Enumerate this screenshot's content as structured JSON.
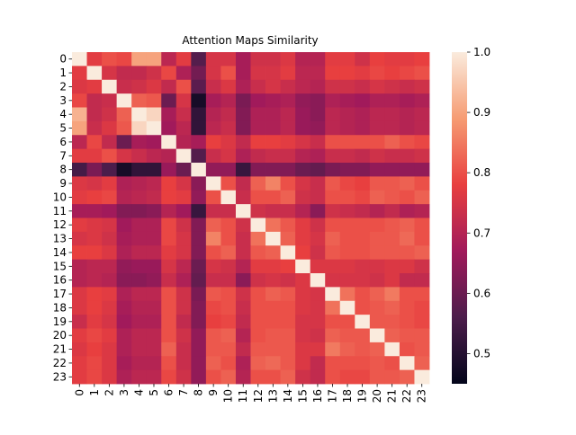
{
  "chart_data": {
    "type": "heatmap",
    "title": "Attention Maps Similarity",
    "xlabel": "",
    "ylabel": "",
    "row_labels": [
      "0",
      "1",
      "2",
      "3",
      "4",
      "5",
      "6",
      "7",
      "8",
      "9",
      "10",
      "11",
      "12",
      "13",
      "14",
      "15",
      "16",
      "17",
      "18",
      "19",
      "20",
      "21",
      "22",
      "23"
    ],
    "col_labels": [
      "0",
      "1",
      "2",
      "3",
      "4",
      "5",
      "6",
      "7",
      "8",
      "9",
      "10",
      "11",
      "12",
      "13",
      "14",
      "15",
      "16",
      "17",
      "18",
      "19",
      "20",
      "21",
      "22",
      "23"
    ],
    "values": [
      [
        1.0,
        0.77,
        0.8,
        0.79,
        0.9,
        0.9,
        0.71,
        0.77,
        0.57,
        0.75,
        0.75,
        0.68,
        0.74,
        0.74,
        0.76,
        0.7,
        0.7,
        0.77,
        0.77,
        0.74,
        0.78,
        0.77,
        0.77,
        0.78
      ],
      [
        0.77,
        1.0,
        0.75,
        0.72,
        0.72,
        0.74,
        0.79,
        0.69,
        0.61,
        0.75,
        0.8,
        0.68,
        0.75,
        0.75,
        0.77,
        0.71,
        0.71,
        0.78,
        0.78,
        0.77,
        0.79,
        0.78,
        0.79,
        0.8
      ],
      [
        0.76,
        0.77,
        1.0,
        0.73,
        0.74,
        0.76,
        0.72,
        0.8,
        0.58,
        0.73,
        0.76,
        0.69,
        0.73,
        0.75,
        0.73,
        0.71,
        0.7,
        0.74,
        0.74,
        0.73,
        0.75,
        0.74,
        0.73,
        0.74
      ],
      [
        0.79,
        0.72,
        0.73,
        1.0,
        0.82,
        0.81,
        0.6,
        0.75,
        0.48,
        0.68,
        0.7,
        0.62,
        0.67,
        0.68,
        0.69,
        0.65,
        0.64,
        0.69,
        0.68,
        0.67,
        0.69,
        0.69,
        0.68,
        0.69
      ],
      [
        0.92,
        0.72,
        0.74,
        0.82,
        1.0,
        0.97,
        0.68,
        0.73,
        0.52,
        0.7,
        0.72,
        0.63,
        0.69,
        0.69,
        0.71,
        0.66,
        0.64,
        0.71,
        0.7,
        0.69,
        0.71,
        0.71,
        0.7,
        0.71
      ],
      [
        0.9,
        0.73,
        0.76,
        0.81,
        0.97,
        1.0,
        0.67,
        0.71,
        0.52,
        0.71,
        0.73,
        0.63,
        0.69,
        0.69,
        0.71,
        0.66,
        0.65,
        0.71,
        0.7,
        0.69,
        0.71,
        0.71,
        0.7,
        0.71
      ],
      [
        0.71,
        0.79,
        0.72,
        0.6,
        0.68,
        0.67,
        1.0,
        0.7,
        0.68,
        0.78,
        0.76,
        0.72,
        0.78,
        0.78,
        0.77,
        0.75,
        0.73,
        0.8,
        0.8,
        0.8,
        0.8,
        0.82,
        0.8,
        0.79
      ],
      [
        0.77,
        0.77,
        0.8,
        0.75,
        0.73,
        0.71,
        0.7,
        1.0,
        0.57,
        0.73,
        0.75,
        0.69,
        0.72,
        0.73,
        0.73,
        0.7,
        0.69,
        0.73,
        0.73,
        0.72,
        0.74,
        0.73,
        0.73,
        0.74
      ],
      [
        0.55,
        0.62,
        0.56,
        0.48,
        0.52,
        0.52,
        0.66,
        0.6,
        1.0,
        0.65,
        0.65,
        0.53,
        0.63,
        0.63,
        0.63,
        0.6,
        0.59,
        0.62,
        0.63,
        0.63,
        0.65,
        0.65,
        0.65,
        0.65
      ],
      [
        0.76,
        0.75,
        0.77,
        0.69,
        0.7,
        0.71,
        0.78,
        0.75,
        0.64,
        1.0,
        0.8,
        0.72,
        0.82,
        0.86,
        0.8,
        0.75,
        0.73,
        0.81,
        0.79,
        0.78,
        0.81,
        0.81,
        0.82,
        0.8
      ],
      [
        0.77,
        0.78,
        0.79,
        0.7,
        0.71,
        0.72,
        0.78,
        0.77,
        0.65,
        0.8,
        1.0,
        0.73,
        0.8,
        0.8,
        0.82,
        0.74,
        0.73,
        0.8,
        0.8,
        0.79,
        0.82,
        0.81,
        0.8,
        0.82
      ],
      [
        0.68,
        0.68,
        0.67,
        0.63,
        0.63,
        0.64,
        0.7,
        0.67,
        0.53,
        0.73,
        0.73,
        1.0,
        0.74,
        0.73,
        0.73,
        0.7,
        0.64,
        0.74,
        0.73,
        0.72,
        0.7,
        0.72,
        0.69,
        0.7
      ],
      [
        0.77,
        0.76,
        0.75,
        0.67,
        0.69,
        0.69,
        0.79,
        0.74,
        0.63,
        0.82,
        0.8,
        0.74,
        1.0,
        0.84,
        0.81,
        0.77,
        0.74,
        0.8,
        0.8,
        0.8,
        0.8,
        0.81,
        0.82,
        0.8
      ],
      [
        0.75,
        0.76,
        0.74,
        0.68,
        0.69,
        0.69,
        0.79,
        0.75,
        0.63,
        0.86,
        0.8,
        0.73,
        0.84,
        1.0,
        0.82,
        0.77,
        0.75,
        0.82,
        0.8,
        0.8,
        0.81,
        0.81,
        0.83,
        0.8
      ],
      [
        0.78,
        0.78,
        0.76,
        0.69,
        0.71,
        0.71,
        0.77,
        0.75,
        0.63,
        0.8,
        0.82,
        0.73,
        0.81,
        0.82,
        1.0,
        0.78,
        0.74,
        0.81,
        0.8,
        0.8,
        0.81,
        0.81,
        0.81,
        0.82
      ],
      [
        0.7,
        0.71,
        0.71,
        0.65,
        0.66,
        0.66,
        0.75,
        0.71,
        0.6,
        0.75,
        0.74,
        0.7,
        0.77,
        0.77,
        0.78,
        1.0,
        0.76,
        0.76,
        0.76,
        0.75,
        0.75,
        0.76,
        0.76,
        0.74
      ],
      [
        0.7,
        0.71,
        0.7,
        0.64,
        0.64,
        0.65,
        0.73,
        0.69,
        0.59,
        0.73,
        0.73,
        0.64,
        0.74,
        0.75,
        0.74,
        0.76,
        1.0,
        0.75,
        0.75,
        0.75,
        0.74,
        0.76,
        0.72,
        0.72
      ],
      [
        0.76,
        0.78,
        0.77,
        0.69,
        0.71,
        0.71,
        0.8,
        0.74,
        0.62,
        0.81,
        0.8,
        0.74,
        0.8,
        0.82,
        0.81,
        0.76,
        0.75,
        1.0,
        0.84,
        0.8,
        0.82,
        0.85,
        0.8,
        0.8
      ],
      [
        0.76,
        0.78,
        0.76,
        0.68,
        0.7,
        0.7,
        0.8,
        0.74,
        0.63,
        0.79,
        0.8,
        0.73,
        0.8,
        0.8,
        0.8,
        0.76,
        0.75,
        0.84,
        1.0,
        0.8,
        0.81,
        0.82,
        0.8,
        0.79
      ],
      [
        0.73,
        0.77,
        0.75,
        0.67,
        0.69,
        0.69,
        0.8,
        0.72,
        0.63,
        0.78,
        0.79,
        0.72,
        0.8,
        0.8,
        0.8,
        0.75,
        0.75,
        0.8,
        0.8,
        1.0,
        0.81,
        0.81,
        0.8,
        0.79
      ],
      [
        0.77,
        0.79,
        0.77,
        0.69,
        0.71,
        0.71,
        0.8,
        0.74,
        0.65,
        0.81,
        0.82,
        0.7,
        0.8,
        0.81,
        0.81,
        0.75,
        0.74,
        0.82,
        0.81,
        0.81,
        1.0,
        0.82,
        0.81,
        0.81
      ],
      [
        0.76,
        0.78,
        0.76,
        0.69,
        0.71,
        0.71,
        0.82,
        0.73,
        0.65,
        0.81,
        0.81,
        0.72,
        0.81,
        0.81,
        0.81,
        0.76,
        0.76,
        0.85,
        0.82,
        0.81,
        0.82,
        1.0,
        0.8,
        0.81
      ],
      [
        0.77,
        0.79,
        0.76,
        0.68,
        0.7,
        0.7,
        0.8,
        0.73,
        0.65,
        0.82,
        0.8,
        0.69,
        0.82,
        0.83,
        0.81,
        0.76,
        0.72,
        0.8,
        0.8,
        0.8,
        0.81,
        0.8,
        1.0,
        0.82
      ],
      [
        0.77,
        0.79,
        0.76,
        0.69,
        0.71,
        0.71,
        0.79,
        0.74,
        0.65,
        0.8,
        0.82,
        0.7,
        0.8,
        0.8,
        0.82,
        0.74,
        0.72,
        0.8,
        0.79,
        0.79,
        0.81,
        0.81,
        0.82,
        1.0
      ]
    ],
    "vmin": 0.45,
    "vmax": 1.0,
    "colorbar_ticks": [
      "0.5",
      "0.6",
      "0.7",
      "0.8",
      "0.9",
      "1.0"
    ],
    "colormap": "rocket",
    "colorbar_colors": [
      "#03051a",
      "#4c1d4b",
      "#a11a5b",
      "#e83f3f",
      "#f69c73",
      "#faebdd"
    ],
    "grid": false
  }
}
